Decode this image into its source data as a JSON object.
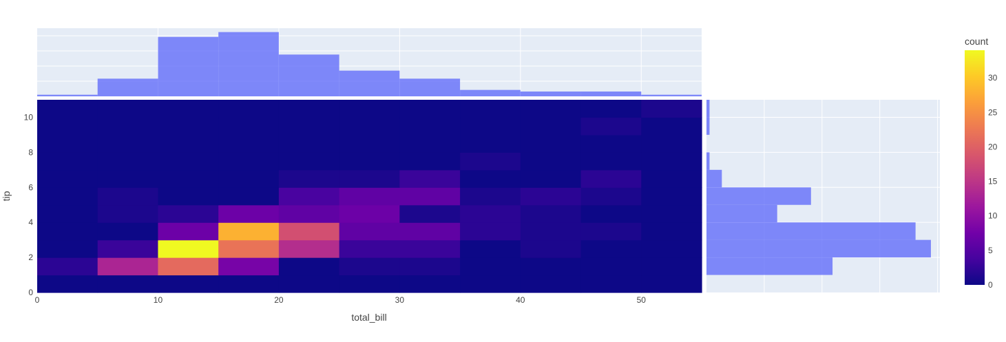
{
  "chart_data": {
    "type": "heatmap",
    "xlabel": "total_bill",
    "ylabel": "tip",
    "xlim": [
      0,
      55
    ],
    "ylim": [
      0,
      11
    ],
    "x_bin_edges": [
      0,
      5,
      10,
      15,
      20,
      25,
      30,
      35,
      40,
      45,
      50,
      55
    ],
    "y_bin_edges": [
      0,
      1,
      2,
      3,
      4,
      5,
      6,
      7,
      8,
      9,
      10,
      11
    ],
    "x_ticks": [
      0,
      10,
      20,
      30,
      40,
      50
    ],
    "y_ticks": [
      0,
      2,
      4,
      6,
      8,
      10
    ],
    "z": [
      [
        0,
        0,
        0,
        0,
        0,
        0,
        0,
        0,
        0,
        0,
        0
      ],
      [
        2,
        13,
        21,
        8,
        0,
        1,
        1,
        0,
        0,
        0,
        0
      ],
      [
        0,
        3,
        34,
        22,
        14,
        3,
        3,
        0,
        1,
        0,
        0
      ],
      [
        0,
        0,
        7,
        28,
        18,
        6,
        6,
        2,
        1,
        1,
        0
      ],
      [
        0,
        1,
        2,
        7,
        6,
        7,
        1,
        2,
        1,
        0,
        0
      ],
      [
        0,
        1,
        0,
        0,
        4,
        6,
        6,
        1,
        2,
        1,
        0
      ],
      [
        0,
        0,
        0,
        0,
        1,
        1,
        3,
        0,
        0,
        2,
        0
      ],
      [
        0,
        0,
        0,
        0,
        0,
        0,
        0,
        1,
        0,
        0,
        0
      ],
      [
        0,
        0,
        0,
        0,
        0,
        0,
        0,
        0,
        0,
        0,
        0
      ],
      [
        0,
        0,
        0,
        0,
        0,
        0,
        0,
        0,
        0,
        1,
        0
      ],
      [
        0,
        0,
        0,
        0,
        0,
        0,
        0,
        0,
        0,
        0,
        1
      ]
    ],
    "marginal_x_counts": [
      1,
      11,
      37,
      40,
      26,
      16,
      11,
      4,
      3,
      3,
      1
    ],
    "marginal_y_counts": [
      0,
      41,
      73,
      68,
      23,
      34,
      5,
      1,
      0,
      1,
      1
    ],
    "colorbar": {
      "title": "count",
      "range": [
        0,
        34
      ],
      "ticks": [
        0,
        5,
        10,
        15,
        20,
        25,
        30
      ]
    },
    "grid": true
  },
  "colors": {
    "marginal_bar": "#636efa",
    "plot_bg": "#e5ecf6",
    "grid": "#ffffff",
    "text": "#444444"
  }
}
